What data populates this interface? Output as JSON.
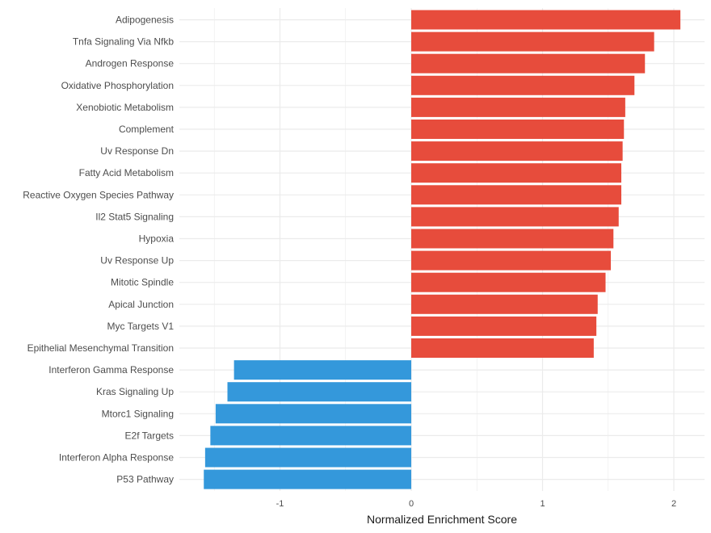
{
  "chart_data": {
    "type": "bar",
    "orientation": "horizontal",
    "title": "",
    "xlabel": "Normalized Enrichment Score",
    "ylabel": "",
    "xlim": [
      -1.6,
      2.25
    ],
    "xticks": [
      -1,
      0,
      1,
      2
    ],
    "xtick_labels": [
      "-1",
      "0",
      "1",
      "2"
    ],
    "grid": true,
    "legend": "none",
    "colors": {
      "positive": "#e74c3c",
      "negative": "#3498db",
      "grid": "#ebebeb"
    },
    "categories": [
      "Adipogenesis",
      "Tnfa Signaling Via Nfkb",
      "Androgen Response",
      "Oxidative Phosphorylation",
      "Xenobiotic Metabolism",
      "Complement",
      "Uv Response Dn",
      "Fatty Acid Metabolism",
      "Reactive Oxygen Species Pathway",
      "Il2 Stat5 Signaling",
      "Hypoxia",
      "Uv Response Up",
      "Mitotic Spindle",
      "Apical Junction",
      "Myc Targets V1",
      "Epithelial Mesenchymal Transition",
      "Interferon Gamma Response",
      "Kras Signaling Up",
      "Mtorc1 Signaling",
      "E2f Targets",
      "Interferon Alpha Response",
      "P53 Pathway"
    ],
    "values": [
      2.05,
      1.85,
      1.78,
      1.7,
      1.63,
      1.62,
      1.61,
      1.6,
      1.6,
      1.58,
      1.54,
      1.52,
      1.48,
      1.42,
      1.41,
      1.39,
      -1.35,
      -1.4,
      -1.49,
      -1.53,
      -1.57,
      -1.58
    ]
  }
}
